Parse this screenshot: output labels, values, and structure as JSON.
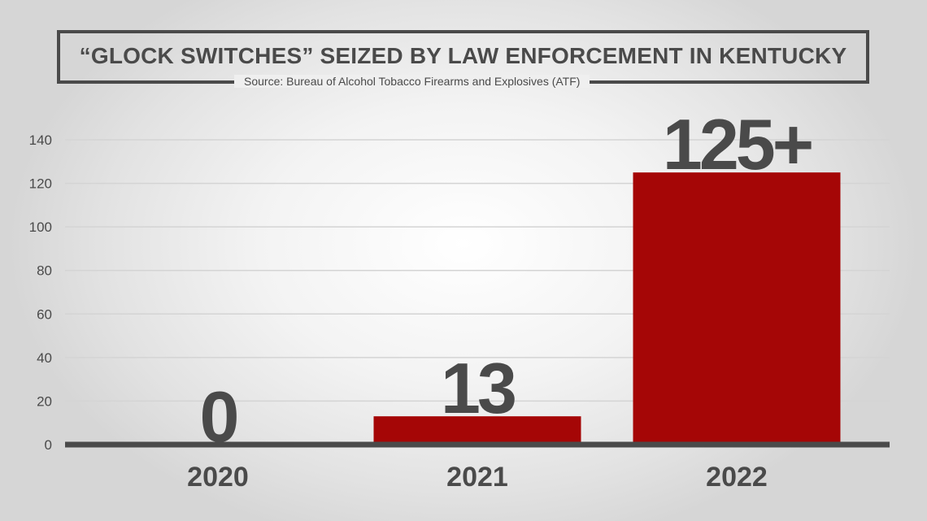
{
  "header": {
    "title": "“GLOCK SWITCHES” SEIZED BY LAW ENFORCEMENT IN KENTUCKY",
    "source": "Source: Bureau of Alcohol Tobacco Firearms and Explosives (ATF)"
  },
  "chart_data": {
    "type": "bar",
    "title": "“GLOCK SWITCHES” SEIZED BY LAW ENFORCEMENT IN KENTUCKY",
    "subtitle": "Source: Bureau of Alcohol Tobacco Firearms and Explosives (ATF)",
    "categories": [
      "2020",
      "2021",
      "2022"
    ],
    "values": [
      0,
      13,
      125
    ],
    "data_labels": [
      "0",
      "13",
      "125+"
    ],
    "xlabel": "",
    "ylabel": "",
    "ylim": [
      0,
      140
    ],
    "yticks": [
      0,
      20,
      40,
      60,
      80,
      100,
      120,
      140
    ],
    "grid": true,
    "legend": "none",
    "colors": {
      "bar": "#a50606",
      "axis": "#4a4a4a",
      "grid": "#d4d4d4",
      "text": "#4a4a4a"
    }
  }
}
